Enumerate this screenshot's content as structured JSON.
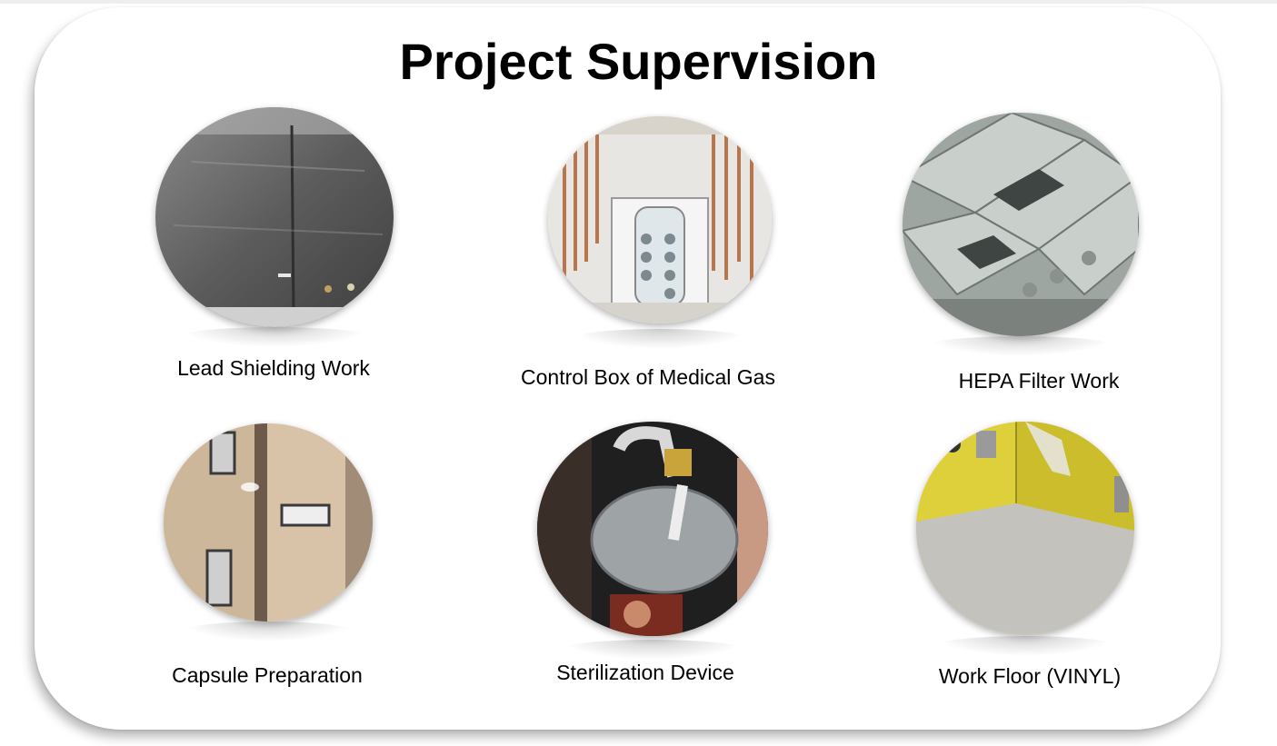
{
  "title": "Project Supervision",
  "items": [
    {
      "caption": "Lead Shielding Work",
      "icon": "lead-shielding-photo"
    },
    {
      "caption": "Control Box of Medical Gas",
      "icon": "medical-gas-box-photo"
    },
    {
      "caption": "HEPA Filter Work",
      "icon": "hepa-filter-photo"
    },
    {
      "caption": "Capsule Preparation",
      "icon": "capsule-wall-photo"
    },
    {
      "caption": "Sterilization Device",
      "icon": "sterilizer-photo"
    },
    {
      "caption": "Work Floor (VINYL)",
      "icon": "vinyl-floor-photo"
    }
  ]
}
